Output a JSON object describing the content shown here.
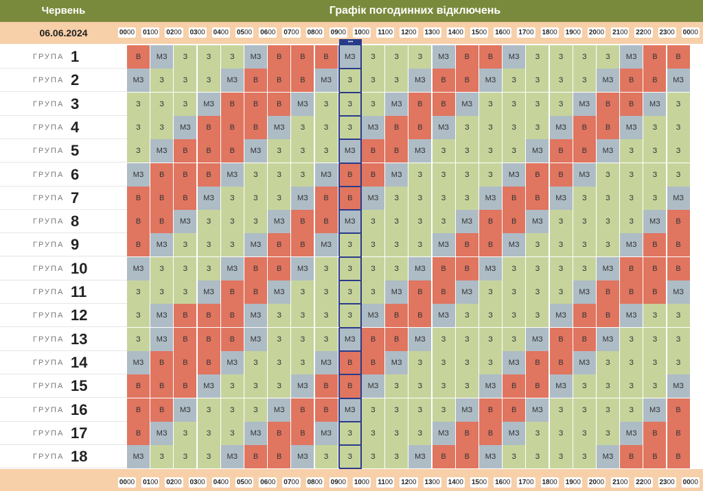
{
  "header": {
    "month": "Червень",
    "title": "Графік погодинних відключень"
  },
  "date": "06.06.2024",
  "group_word": "ГРУПА",
  "now_marker": "•••",
  "current_hour_index": 9,
  "hours": [
    "00",
    "01",
    "02",
    "03",
    "04",
    "05",
    "06",
    "07",
    "08",
    "09",
    "10",
    "11",
    "12",
    "13",
    "14",
    "15",
    "16",
    "17",
    "18",
    "19",
    "20",
    "21",
    "22",
    "23",
    "00"
  ],
  "minutes": "00",
  "state_labels": {
    "v": "В",
    "mz": "МЗ",
    "z": "З"
  },
  "colors": {
    "v": "#e07560",
    "mz": "#aebcc6",
    "z": "#c6d49c",
    "header": "#7a8a3c",
    "timebar": "#f7cfa8"
  },
  "groups": [
    {
      "number": "1",
      "cells": [
        "v",
        "mz",
        "z",
        "z",
        "z",
        "mz",
        "v",
        "v",
        "v",
        "mz",
        "z",
        "z",
        "z",
        "mz",
        "v",
        "v",
        "mz",
        "z",
        "z",
        "z",
        "z",
        "mz",
        "v",
        "v"
      ]
    },
    {
      "number": "2",
      "cells": [
        "mz",
        "z",
        "z",
        "z",
        "mz",
        "v",
        "v",
        "v",
        "mz",
        "z",
        "z",
        "z",
        "mz",
        "v",
        "v",
        "mz",
        "z",
        "z",
        "z",
        "z",
        "mz",
        "v",
        "v",
        "mz"
      ]
    },
    {
      "number": "3",
      "cells": [
        "z",
        "z",
        "z",
        "mz",
        "v",
        "v",
        "v",
        "mz",
        "z",
        "z",
        "z",
        "mz",
        "v",
        "v",
        "mz",
        "z",
        "z",
        "z",
        "z",
        "mz",
        "v",
        "v",
        "mz",
        "z"
      ]
    },
    {
      "number": "4",
      "cells": [
        "z",
        "z",
        "mz",
        "v",
        "v",
        "v",
        "mz",
        "z",
        "z",
        "z",
        "mz",
        "v",
        "v",
        "mz",
        "z",
        "z",
        "z",
        "z",
        "mz",
        "v",
        "v",
        "mz",
        "z",
        "z"
      ]
    },
    {
      "number": "5",
      "cells": [
        "z",
        "mz",
        "v",
        "v",
        "v",
        "mz",
        "z",
        "z",
        "z",
        "mz",
        "v",
        "v",
        "mz",
        "z",
        "z",
        "z",
        "z",
        "mz",
        "v",
        "v",
        "mz",
        "z",
        "z",
        "z"
      ]
    },
    {
      "number": "6",
      "cells": [
        "mz",
        "v",
        "v",
        "v",
        "mz",
        "z",
        "z",
        "z",
        "mz",
        "v",
        "v",
        "mz",
        "z",
        "z",
        "z",
        "z",
        "mz",
        "v",
        "v",
        "mz",
        "z",
        "z",
        "z",
        "z"
      ]
    },
    {
      "number": "7",
      "cells": [
        "v",
        "v",
        "v",
        "mz",
        "z",
        "z",
        "z",
        "mz",
        "v",
        "v",
        "mz",
        "z",
        "z",
        "z",
        "z",
        "mz",
        "v",
        "v",
        "mz",
        "z",
        "z",
        "z",
        "z",
        "mz"
      ]
    },
    {
      "number": "8",
      "cells": [
        "v",
        "v",
        "mz",
        "z",
        "z",
        "z",
        "mz",
        "v",
        "v",
        "mz",
        "z",
        "z",
        "z",
        "z",
        "mz",
        "v",
        "v",
        "mz",
        "z",
        "z",
        "z",
        "z",
        "mz",
        "v"
      ]
    },
    {
      "number": "9",
      "cells": [
        "v",
        "mz",
        "z",
        "z",
        "z",
        "mz",
        "v",
        "v",
        "mz",
        "z",
        "z",
        "z",
        "z",
        "mz",
        "v",
        "v",
        "mz",
        "z",
        "z",
        "z",
        "z",
        "mz",
        "v",
        "v"
      ]
    },
    {
      "number": "10",
      "cells": [
        "mz",
        "z",
        "z",
        "z",
        "mz",
        "v",
        "v",
        "mz",
        "z",
        "z",
        "z",
        "z",
        "mz",
        "v",
        "v",
        "mz",
        "z",
        "z",
        "z",
        "z",
        "mz",
        "v",
        "v",
        "v"
      ]
    },
    {
      "number": "11",
      "cells": [
        "z",
        "z",
        "z",
        "mz",
        "v",
        "v",
        "mz",
        "z",
        "z",
        "z",
        "z",
        "mz",
        "v",
        "v",
        "mz",
        "z",
        "z",
        "z",
        "z",
        "mz",
        "v",
        "v",
        "v",
        "mz"
      ]
    },
    {
      "number": "12",
      "cells": [
        "z",
        "mz",
        "v",
        "v",
        "v",
        "mz",
        "z",
        "z",
        "z",
        "z",
        "mz",
        "v",
        "v",
        "mz",
        "z",
        "z",
        "z",
        "z",
        "mz",
        "v",
        "v",
        "mz",
        "z",
        "z"
      ]
    },
    {
      "number": "13",
      "cells": [
        "z",
        "mz",
        "v",
        "v",
        "v",
        "mz",
        "z",
        "z",
        "z",
        "mz",
        "v",
        "v",
        "mz",
        "z",
        "z",
        "z",
        "z",
        "mz",
        "v",
        "v",
        "mz",
        "z",
        "z",
        "z"
      ]
    },
    {
      "number": "14",
      "cells": [
        "mz",
        "v",
        "v",
        "v",
        "mz",
        "z",
        "z",
        "z",
        "mz",
        "v",
        "v",
        "mz",
        "z",
        "z",
        "z",
        "z",
        "mz",
        "v",
        "v",
        "mz",
        "z",
        "z",
        "z",
        "z"
      ]
    },
    {
      "number": "15",
      "cells": [
        "v",
        "v",
        "v",
        "mz",
        "z",
        "z",
        "z",
        "mz",
        "v",
        "v",
        "mz",
        "z",
        "z",
        "z",
        "z",
        "mz",
        "v",
        "v",
        "mz",
        "z",
        "z",
        "z",
        "z",
        "mz"
      ]
    },
    {
      "number": "16",
      "cells": [
        "v",
        "v",
        "mz",
        "z",
        "z",
        "z",
        "mz",
        "v",
        "v",
        "mz",
        "z",
        "z",
        "z",
        "z",
        "mz",
        "v",
        "v",
        "mz",
        "z",
        "z",
        "z",
        "z",
        "mz",
        "v"
      ]
    },
    {
      "number": "17",
      "cells": [
        "v",
        "mz",
        "z",
        "z",
        "z",
        "mz",
        "v",
        "v",
        "mz",
        "z",
        "z",
        "z",
        "z",
        "mz",
        "v",
        "v",
        "mz",
        "z",
        "z",
        "z",
        "z",
        "mz",
        "v",
        "v"
      ]
    },
    {
      "number": "18",
      "cells": [
        "mz",
        "z",
        "z",
        "z",
        "mz",
        "v",
        "v",
        "mz",
        "z",
        "z",
        "z",
        "z",
        "mz",
        "v",
        "v",
        "mz",
        "z",
        "z",
        "z",
        "z",
        "mz",
        "v",
        "v",
        "v"
      ]
    }
  ]
}
